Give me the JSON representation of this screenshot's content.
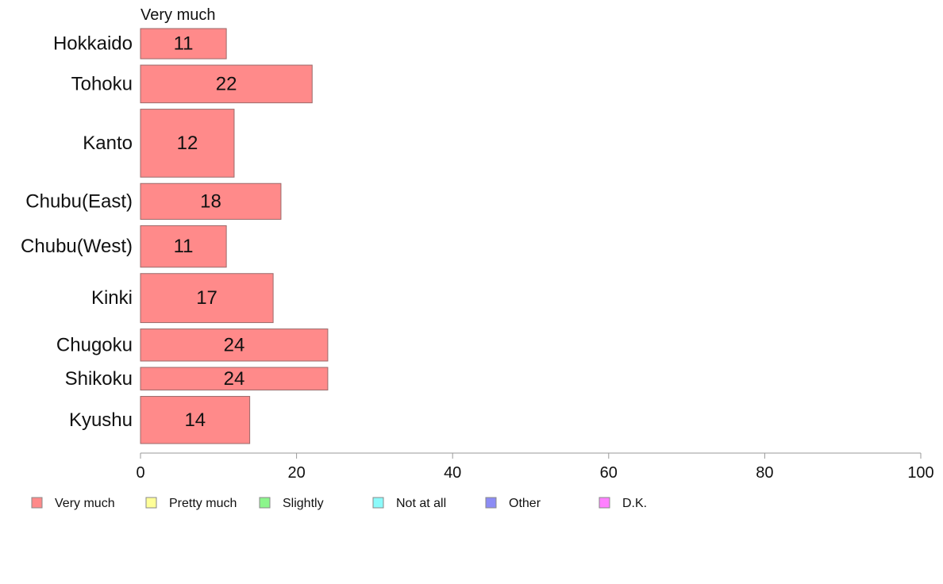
{
  "chart_data": {
    "type": "bar",
    "orientation": "horizontal",
    "series_title": "Very much",
    "categories": [
      "Hokkaido",
      "Tohoku",
      "Kanto",
      "Chubu(East)",
      "Chubu(West)",
      "Kinki",
      "Chugoku",
      "Shikoku",
      "Kyushu"
    ],
    "series": [
      {
        "name": "Very much",
        "values": [
          11,
          22,
          12,
          18,
          11,
          17,
          24,
          24,
          14
        ]
      }
    ],
    "value_labels": [
      "11",
      "22",
      "12",
      "18",
      "11",
      "17",
      "24",
      "24",
      "14"
    ],
    "bar_weights": [
      0.8,
      1.0,
      1.8,
      0.95,
      1.1,
      1.3,
      0.85,
      0.6,
      1.25
    ],
    "xlim": [
      0,
      100
    ],
    "xticks": [
      0,
      20,
      40,
      60,
      80,
      100
    ],
    "grid": false,
    "legend_position": "bottom",
    "legend": [
      {
        "label": "Very much",
        "color": "#ff8a8a"
      },
      {
        "label": "Pretty much",
        "color": "#ffff99"
      },
      {
        "label": "Slightly",
        "color": "#8cf58c"
      },
      {
        "label": "Not at all",
        "color": "#8cfafa"
      },
      {
        "label": "Other",
        "color": "#8c8cf5"
      },
      {
        "label": "D.K.",
        "color": "#ff80ff"
      }
    ],
    "bar_color": "#ff8a8a",
    "bar_stroke": "#9a6a6a",
    "axis_color": "#999999"
  }
}
